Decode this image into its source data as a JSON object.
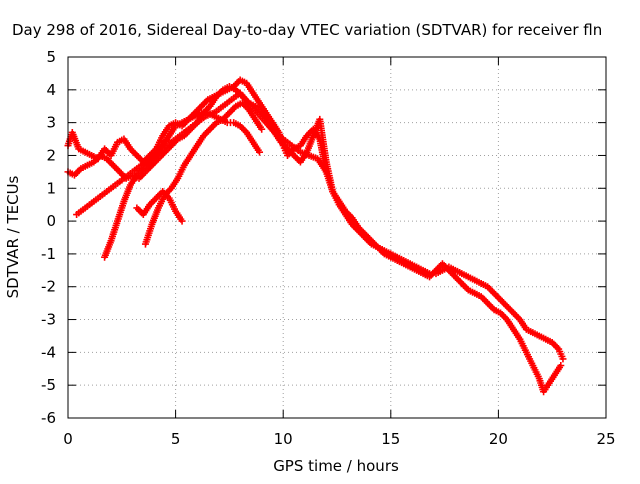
{
  "chart_data": {
    "type": "scatter",
    "title": "Day 298 of 2016, Sidereal Day-to-day VTEC variation (SDTVAR) for receiver fln",
    "xlabel": "GPS time / hours",
    "ylabel": "SDTVAR / TECUs",
    "xlim": [
      0,
      25
    ],
    "ylim": [
      -6,
      5
    ],
    "xticks": [
      "0",
      "5",
      "10",
      "15",
      "20",
      "25"
    ],
    "yticks": [
      "-6",
      "-5",
      "-4",
      "-3",
      "-2",
      "-1",
      "0",
      "1",
      "2",
      "3",
      "4",
      "5"
    ],
    "grid": true,
    "marker": "+",
    "series_color": "#ff0000",
    "series": [
      {
        "x": [
          0.0,
          0.2,
          0.5,
          0.8,
          1.1,
          1.4,
          1.7,
          2.0,
          2.3,
          2.6,
          2.9,
          3.2,
          3.5,
          3.8,
          4.1,
          4.4,
          4.7,
          5.0,
          5.3,
          5.6,
          5.9,
          6.2,
          6.5,
          6.8,
          7.1,
          7.4,
          7.7,
          8.0,
          8.3,
          8.6,
          8.9,
          9.2,
          9.5,
          9.8,
          10.0,
          10.2,
          10.5,
          10.8,
          11.1,
          11.4,
          11.7,
          12.0,
          12.3,
          12.6,
          12.9,
          13.2,
          13.5,
          13.8,
          14.1,
          14.4,
          14.7,
          15.0,
          15.3,
          15.6,
          15.9,
          16.2,
          16.5,
          16.8,
          17.1,
          17.4,
          17.7,
          18.0,
          18.3,
          18.6,
          18.9,
          19.2,
          19.5,
          19.8,
          20.1,
          20.4,
          20.7,
          21.0,
          21.3,
          21.6,
          21.9,
          22.2,
          22.5,
          22.8,
          23.0
        ],
        "y": [
          2.3,
          2.7,
          2.2,
          2.1,
          2.0,
          1.9,
          2.2,
          2.0,
          2.4,
          2.5,
          2.2,
          2.0,
          1.8,
          2.0,
          2.2,
          2.6,
          2.9,
          3.0,
          2.9,
          3.1,
          3.3,
          3.5,
          3.7,
          3.8,
          3.9,
          4.0,
          4.1,
          4.3,
          4.2,
          3.9,
          3.6,
          3.3,
          3.0,
          2.7,
          2.3,
          2.0,
          2.2,
          2.3,
          2.6,
          2.8,
          2.5,
          1.5,
          0.9,
          0.5,
          0.2,
          -0.1,
          -0.3,
          -0.5,
          -0.7,
          -0.8,
          -0.9,
          -1.0,
          -1.1,
          -1.2,
          -1.3,
          -1.4,
          -1.5,
          -1.6,
          -1.6,
          -1.5,
          -1.4,
          -1.5,
          -1.6,
          -1.7,
          -1.8,
          -1.9,
          -2.0,
          -2.2,
          -2.4,
          -2.6,
          -2.8,
          -3.0,
          -3.3,
          -3.4,
          -3.5,
          -3.6,
          -3.7,
          -3.9,
          -4.2
        ]
      },
      {
        "x": [
          0.0,
          0.3,
          0.6,
          0.9,
          1.2,
          1.5,
          1.8,
          2.1,
          2.4,
          2.7,
          3.0,
          3.3,
          3.6,
          3.9,
          4.2,
          4.5,
          4.8,
          5.1,
          5.4,
          5.7,
          6.0,
          6.3,
          6.6,
          6.9,
          7.2,
          7.5,
          7.8,
          8.1,
          8.4,
          8.7,
          9.0,
          9.3,
          9.6,
          9.9,
          10.2,
          10.5,
          10.8,
          11.1,
          11.4,
          11.7,
          12.0,
          12.3,
          12.6,
          12.9,
          13.2,
          13.5,
          13.8,
          14.1,
          14.4,
          14.7,
          15.0,
          15.3,
          15.6,
          15.9,
          16.2,
          16.5,
          16.8,
          17.1,
          17.4,
          17.7,
          18.0,
          18.3,
          18.6,
          18.9,
          19.2,
          19.5,
          19.8,
          20.1,
          20.4,
          20.7,
          21.0,
          21.3,
          21.6,
          21.9,
          22.1,
          22.3,
          22.6,
          22.9
        ],
        "y": [
          1.5,
          1.4,
          1.6,
          1.7,
          1.8,
          2.0,
          1.9,
          1.7,
          1.5,
          1.3,
          1.4,
          1.3,
          1.5,
          1.7,
          1.9,
          2.1,
          2.3,
          2.5,
          2.6,
          2.8,
          3.0,
          3.3,
          3.5,
          3.8,
          4.0,
          4.1,
          4.0,
          3.8,
          3.6,
          3.5,
          3.3,
          3.0,
          2.7,
          2.4,
          2.2,
          2.0,
          1.8,
          2.1,
          2.6,
          3.1,
          1.8,
          0.9,
          0.6,
          0.3,
          0.1,
          -0.2,
          -0.4,
          -0.6,
          -0.8,
          -1.0,
          -1.1,
          -1.2,
          -1.3,
          -1.4,
          -1.5,
          -1.6,
          -1.7,
          -1.5,
          -1.3,
          -1.5,
          -1.7,
          -1.9,
          -2.1,
          -2.2,
          -2.3,
          -2.5,
          -2.7,
          -2.8,
          -3.0,
          -3.3,
          -3.6,
          -4.0,
          -4.4,
          -4.8,
          -5.2,
          -5.0,
          -4.7,
          -4.4
        ]
      },
      {
        "x": [
          0.4,
          0.8,
          1.2,
          1.6,
          2.0,
          2.4,
          2.8,
          3.2,
          3.6,
          4.0,
          4.4,
          4.8,
          5.2,
          5.6,
          6.0,
          6.4,
          6.8,
          7.2,
          7.6,
          8.0,
          8.4,
          8.8,
          9.2,
          9.6,
          10.0,
          10.4,
          10.8,
          11.2,
          11.6,
          12.0
        ],
        "y": [
          0.2,
          0.4,
          0.6,
          0.8,
          1.0,
          1.2,
          1.4,
          1.6,
          1.8,
          2.0,
          2.2,
          2.4,
          2.6,
          2.8,
          3.0,
          3.2,
          3.3,
          3.5,
          3.7,
          3.9,
          3.6,
          3.3,
          3.0,
          2.7,
          2.5,
          2.3,
          2.1,
          2.0,
          1.9,
          1.5
        ]
      },
      {
        "x": [
          1.7,
          2.0,
          2.3,
          2.6,
          2.9,
          3.2,
          3.5,
          3.8,
          4.1,
          4.4,
          4.7,
          5.0,
          5.3,
          5.6,
          5.9,
          6.2,
          6.5,
          6.8,
          7.1,
          7.4,
          7.7,
          8.0,
          8.3,
          8.6,
          8.9
        ],
        "y": [
          -1.1,
          -0.6,
          0.0,
          0.6,
          1.1,
          1.4,
          1.6,
          1.8,
          2.0,
          2.3,
          2.6,
          2.9,
          3.0,
          3.1,
          3.2,
          3.3,
          3.3,
          3.2,
          3.1,
          3.0,
          3.0,
          2.9,
          2.7,
          2.4,
          2.1
        ]
      },
      {
        "x": [
          3.6,
          3.9,
          4.2,
          4.5,
          4.8,
          5.1,
          5.4,
          5.7,
          6.0,
          6.3,
          6.6,
          6.9,
          7.2,
          7.5,
          7.8,
          8.1,
          8.4,
          8.7,
          9.0
        ],
        "y": [
          -0.7,
          -0.1,
          0.4,
          0.8,
          1.0,
          1.3,
          1.7,
          2.0,
          2.3,
          2.6,
          2.8,
          3.0,
          3.1,
          3.3,
          3.5,
          3.6,
          3.4,
          3.1,
          2.8
        ]
      },
      {
        "x": [
          3.2,
          3.5,
          3.8,
          4.1,
          4.4,
          4.7,
          5.0,
          5.3
        ],
        "y": [
          0.4,
          0.2,
          0.5,
          0.7,
          0.9,
          0.7,
          0.3,
          0.0
        ]
      }
    ]
  }
}
